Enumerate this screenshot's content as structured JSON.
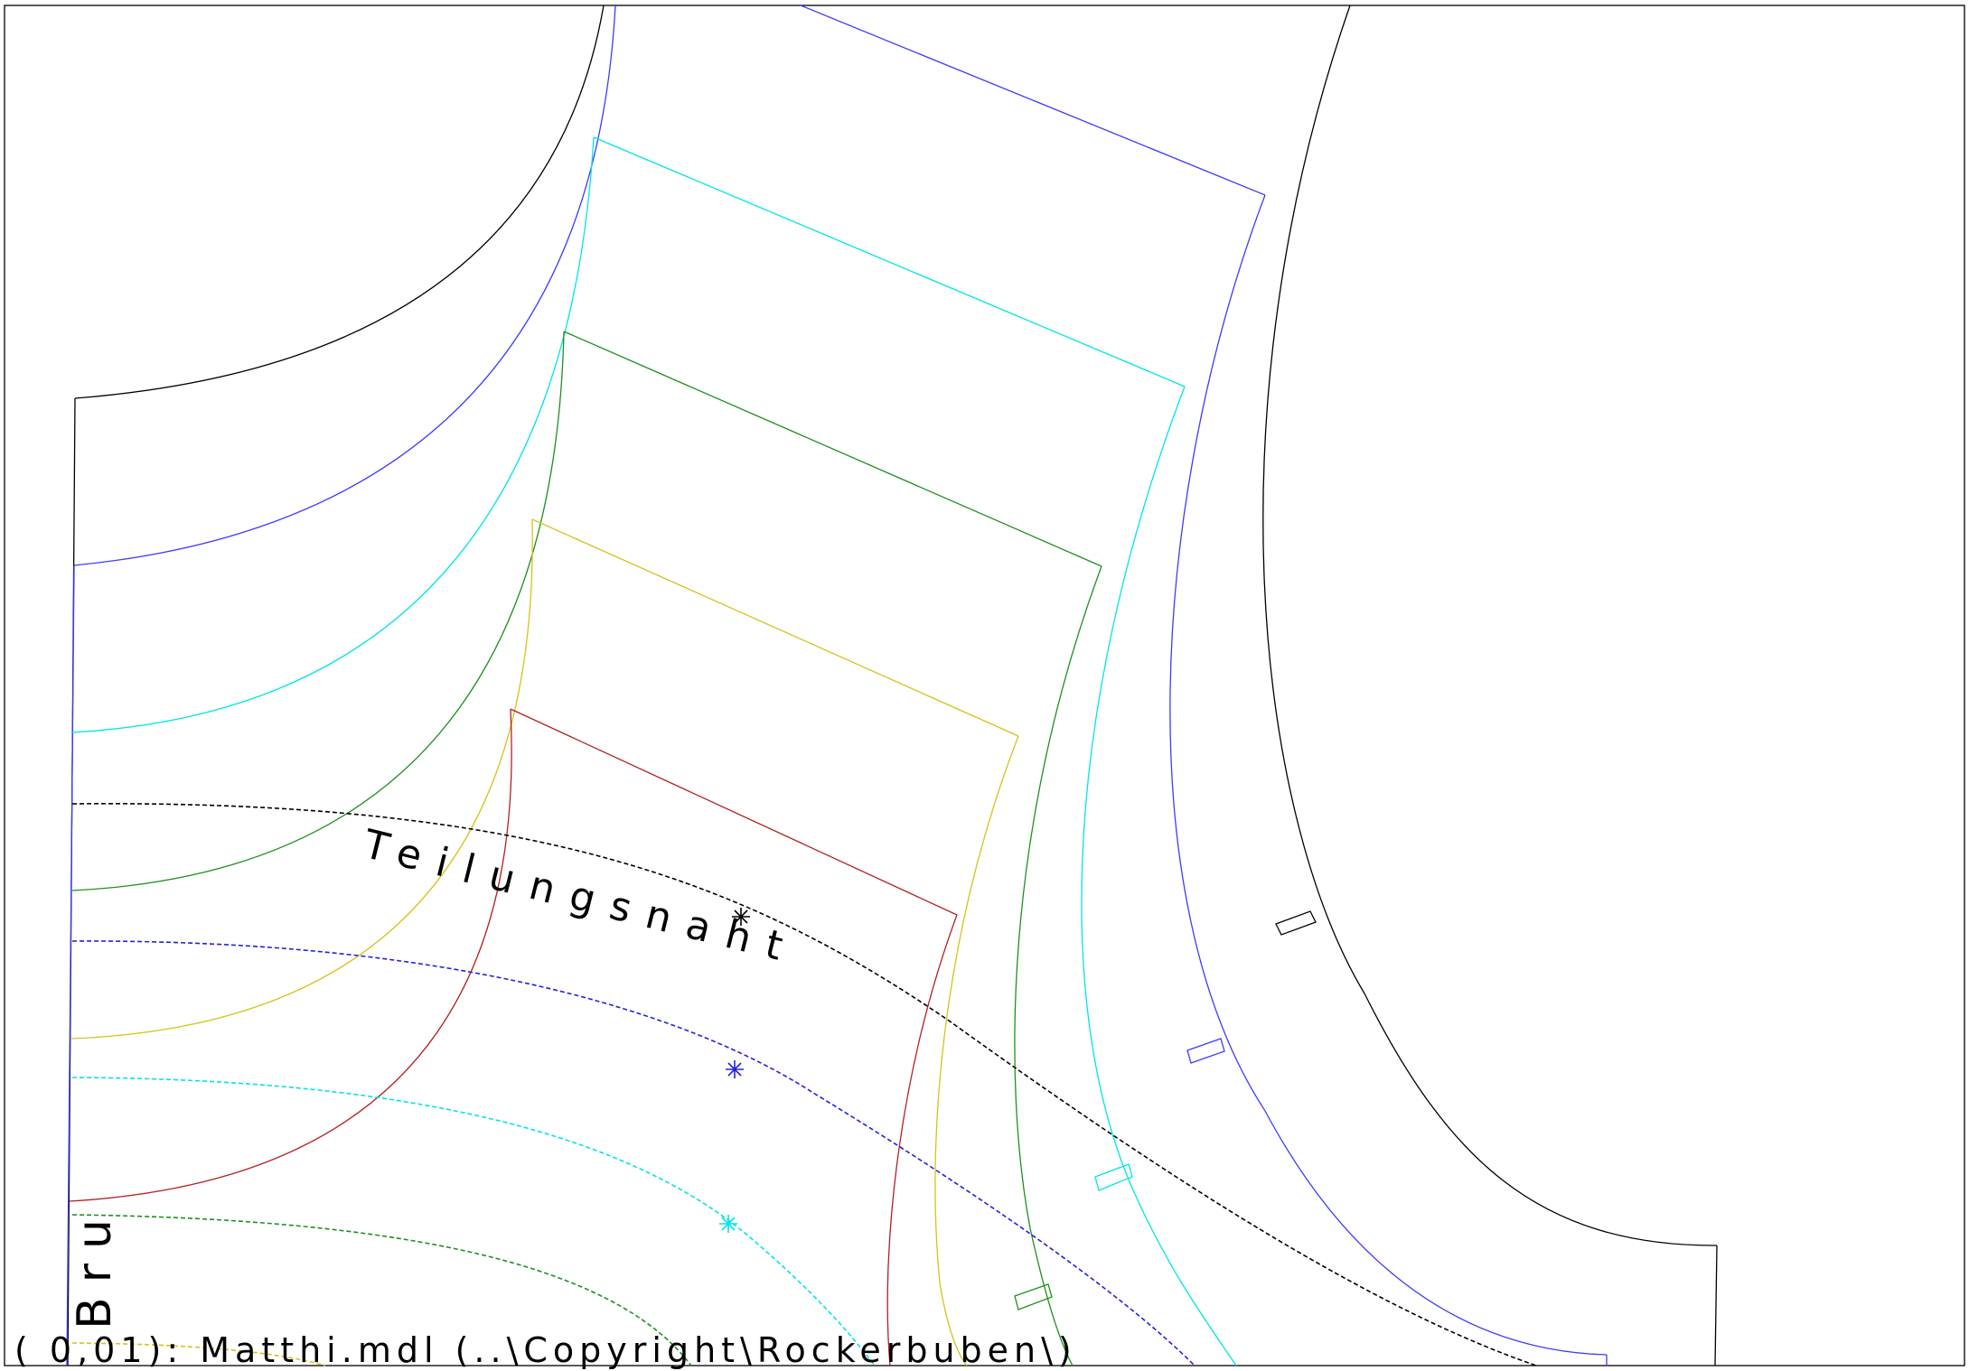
{
  "labels": {
    "seam": "Teilungsnaht",
    "piece": "Bru",
    "footer": "( 0,01): Matthi.mdl (..\\Copyright\\Rockerbuben\\)"
  },
  "colors": {
    "frame": "#000000",
    "outline": "#000000",
    "size_1": "#3b3bff",
    "size_2": "#00e5e5",
    "size_3": "#1f8f1f",
    "size_4": "#d6c21a",
    "size_5": "#b22222",
    "seam_line": "#000000"
  }
}
